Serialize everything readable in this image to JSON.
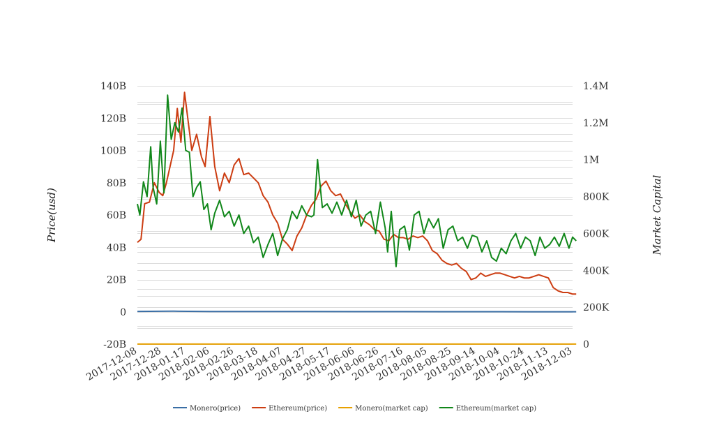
{
  "chart_data": {
    "type": "line",
    "ylabel_left": "Price(usd)",
    "ylabel_right": "Market Capital",
    "y_left": {
      "ticks": [
        "-20B",
        "0",
        "20B",
        "40B",
        "60B",
        "80B",
        "100B",
        "120B",
        "140B"
      ],
      "range": [
        -20,
        140
      ],
      "unit": "B"
    },
    "y_right": {
      "ticks": [
        "0",
        "200K",
        "400K",
        "600K",
        "800K",
        "1M",
        "1.2M",
        "1.4M"
      ],
      "range": [
        0,
        1400
      ],
      "unit": "K"
    },
    "x_dates": [
      "2017-12-08",
      "2017-12-28",
      "2018-01-17",
      "2018-02-06",
      "2018-02-26",
      "2018-03-18",
      "2018-04-07",
      "2018-04-27",
      "2018-05-17",
      "2018-06-06",
      "2018-06-26",
      "2018-07-16",
      "2018-08-05",
      "2018-08-25",
      "2018-09-14",
      "2018-10-04",
      "2018-10-24",
      "2018-11-13",
      "2018-12-03"
    ],
    "grid": true,
    "legend_position": "bottom",
    "series": [
      {
        "name": "Monero(price)",
        "color": "#3a6ea5",
        "axis": "left",
        "x": [
          "2017-12-08",
          "2018-01-07",
          "2018-02-06",
          "2018-03-18",
          "2018-04-27",
          "2018-06-06",
          "2018-07-16",
          "2018-08-25",
          "2018-10-04",
          "2018-11-13",
          "2018-12-06"
        ],
        "values": [
          0.3,
          0.4,
          0.2,
          0.2,
          0.2,
          0.15,
          0.15,
          0.1,
          0.1,
          0.08,
          0.05
        ]
      },
      {
        "name": "Ethereum(price)",
        "color": "#cc3d12",
        "axis": "left",
        "x": [
          "2017-12-08",
          "2017-12-11",
          "2017-12-14",
          "2017-12-18",
          "2017-12-22",
          "2017-12-26",
          "2017-12-29",
          "2018-01-01",
          "2018-01-04",
          "2018-01-07",
          "2018-01-10",
          "2018-01-13",
          "2018-01-16",
          "2018-01-19",
          "2018-01-22",
          "2018-01-26",
          "2018-01-30",
          "2018-02-02",
          "2018-02-06",
          "2018-02-10",
          "2018-02-14",
          "2018-02-18",
          "2018-02-22",
          "2018-02-26",
          "2018-03-02",
          "2018-03-06",
          "2018-03-10",
          "2018-03-14",
          "2018-03-18",
          "2018-03-22",
          "2018-03-26",
          "2018-03-30",
          "2018-04-03",
          "2018-04-07",
          "2018-04-11",
          "2018-04-15",
          "2018-04-19",
          "2018-04-23",
          "2018-04-27",
          "2018-05-01",
          "2018-05-05",
          "2018-05-09",
          "2018-05-13",
          "2018-05-17",
          "2018-05-21",
          "2018-05-25",
          "2018-05-29",
          "2018-06-02",
          "2018-06-06",
          "2018-06-10",
          "2018-06-14",
          "2018-06-18",
          "2018-06-22",
          "2018-06-26",
          "2018-06-30",
          "2018-07-04",
          "2018-07-08",
          "2018-07-12",
          "2018-07-16",
          "2018-07-20",
          "2018-07-24",
          "2018-07-28",
          "2018-08-01",
          "2018-08-05",
          "2018-08-09",
          "2018-08-13",
          "2018-08-17",
          "2018-08-21",
          "2018-08-25",
          "2018-08-29",
          "2018-09-02",
          "2018-09-06",
          "2018-09-10",
          "2018-09-14",
          "2018-09-18",
          "2018-09-22",
          "2018-09-26",
          "2018-09-30",
          "2018-10-04",
          "2018-10-08",
          "2018-10-12",
          "2018-10-16",
          "2018-10-20",
          "2018-10-24",
          "2018-10-28",
          "2018-11-01",
          "2018-11-05",
          "2018-11-09",
          "2018-11-13",
          "2018-11-17",
          "2018-11-21",
          "2018-11-25",
          "2018-11-29",
          "2018-12-03",
          "2018-12-06"
        ],
        "values": [
          43,
          45,
          67,
          68,
          80,
          74,
          72,
          80,
          90,
          100,
          126,
          105,
          136,
          118,
          100,
          110,
          96,
          90,
          121,
          90,
          75,
          86,
          80,
          91,
          95,
          85,
          86,
          83,
          80,
          72,
          68,
          60,
          55,
          45,
          42,
          38,
          47,
          52,
          60,
          66,
          70,
          78,
          81,
          75,
          72,
          73,
          67,
          62,
          58,
          60,
          56,
          54,
          51,
          50,
          45,
          44,
          48,
          46,
          46,
          45,
          47,
          46,
          47,
          44,
          38,
          36,
          32,
          30,
          29,
          30,
          27,
          25,
          20,
          21,
          24,
          22,
          23,
          24,
          24,
          23,
          22,
          21,
          22,
          21,
          21,
          22,
          23,
          22,
          21,
          15,
          13,
          12,
          12,
          11,
          11
        ]
      },
      {
        "name": "Monero(market cap)",
        "color": "#e8a100",
        "axis": "right",
        "x": [
          "2017-12-08",
          "2018-12-06"
        ],
        "values": [
          0.5,
          0.5
        ]
      },
      {
        "name": "Ethereum(market cap)",
        "color": "#11871a",
        "axis": "right",
        "x": [
          "2017-12-08",
          "2017-12-10",
          "2017-12-13",
          "2017-12-16",
          "2017-12-19",
          "2017-12-21",
          "2017-12-24",
          "2017-12-27",
          "2017-12-30",
          "2018-01-02",
          "2018-01-05",
          "2018-01-08",
          "2018-01-11",
          "2018-01-14",
          "2018-01-17",
          "2018-01-20",
          "2018-01-23",
          "2018-01-26",
          "2018-01-29",
          "2018-02-01",
          "2018-02-04",
          "2018-02-07",
          "2018-02-10",
          "2018-02-14",
          "2018-02-18",
          "2018-02-22",
          "2018-02-26",
          "2018-03-02",
          "2018-03-06",
          "2018-03-10",
          "2018-03-14",
          "2018-03-18",
          "2018-03-22",
          "2018-03-26",
          "2018-03-30",
          "2018-04-03",
          "2018-04-07",
          "2018-04-11",
          "2018-04-15",
          "2018-04-19",
          "2018-04-23",
          "2018-04-27",
          "2018-05-01",
          "2018-05-03",
          "2018-05-06",
          "2018-05-10",
          "2018-05-14",
          "2018-05-18",
          "2018-05-22",
          "2018-05-26",
          "2018-05-30",
          "2018-06-03",
          "2018-06-07",
          "2018-06-11",
          "2018-06-15",
          "2018-06-19",
          "2018-06-23",
          "2018-06-27",
          "2018-07-01",
          "2018-07-03",
          "2018-07-06",
          "2018-07-10",
          "2018-07-13",
          "2018-07-17",
          "2018-07-21",
          "2018-07-25",
          "2018-07-29",
          "2018-08-02",
          "2018-08-06",
          "2018-08-10",
          "2018-08-14",
          "2018-08-18",
          "2018-08-22",
          "2018-08-26",
          "2018-08-30",
          "2018-09-03",
          "2018-09-07",
          "2018-09-11",
          "2018-09-15",
          "2018-09-19",
          "2018-09-23",
          "2018-09-27",
          "2018-10-01",
          "2018-10-05",
          "2018-10-09",
          "2018-10-13",
          "2018-10-17",
          "2018-10-21",
          "2018-10-25",
          "2018-10-29",
          "2018-11-02",
          "2018-11-06",
          "2018-11-10",
          "2018-11-14",
          "2018-11-18",
          "2018-11-22",
          "2018-11-26",
          "2018-11-30",
          "2018-12-03",
          "2018-12-06"
        ],
        "values": [
          760,
          700,
          880,
          800,
          1070,
          850,
          760,
          1100,
          820,
          1350,
          1110,
          1200,
          1150,
          1280,
          1050,
          1040,
          800,
          850,
          880,
          730,
          760,
          620,
          710,
          780,
          690,
          720,
          640,
          700,
          600,
          640,
          550,
          580,
          470,
          540,
          600,
          480,
          570,
          620,
          720,
          680,
          750,
          700,
          690,
          700,
          1000,
          740,
          760,
          710,
          770,
          700,
          780,
          690,
          780,
          640,
          700,
          720,
          600,
          770,
          630,
          500,
          720,
          420,
          620,
          640,
          510,
          700,
          720,
          600,
          680,
          630,
          680,
          520,
          620,
          640,
          560,
          580,
          520,
          590,
          580,
          500,
          560,
          470,
          450,
          520,
          490,
          560,
          600,
          520,
          580,
          560,
          480,
          580,
          520,
          540,
          580,
          530,
          600,
          520,
          580,
          560
        ]
      }
    ]
  }
}
